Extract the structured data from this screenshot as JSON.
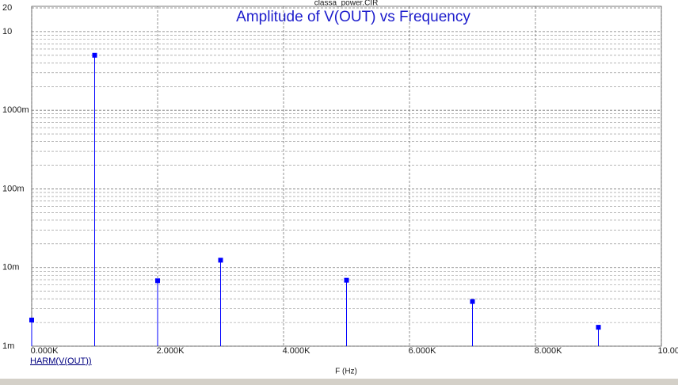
{
  "chart_data": {
    "type": "stem",
    "subtitle": "classa_power.CIR",
    "title": "Amplitude of V(OUT) vs Frequency",
    "x_label": "F (Hz)",
    "log_y": true,
    "grid": true,
    "minor_grid": true,
    "xlim": [
      0,
      10000
    ],
    "xticks": [
      {
        "value": 0,
        "label": "0.000K"
      },
      {
        "value": 2000,
        "label": "2.000K"
      },
      {
        "value": 4000,
        "label": "4.000K"
      },
      {
        "value": 6000,
        "label": "6.000K"
      },
      {
        "value": 8000,
        "label": "8.000K"
      },
      {
        "value": 10000,
        "label": "10.000K"
      }
    ],
    "ylim": [
      0.001,
      20
    ],
    "yticks": [
      20,
      10,
      {
        "value": 1,
        "label": "1000m"
      },
      {
        "value": 0.1,
        "label": "100m"
      },
      {
        "value": 0.01,
        "label": "10m"
      },
      {
        "value": 0.001,
        "label": "1m"
      }
    ],
    "series": [
      {
        "name": "HARM(V(OUT))",
        "color": "#0000ff",
        "x": [
          0,
          1000,
          2000,
          3000,
          5000,
          7000,
          9000
        ],
        "values": [
          0.00215,
          5.0,
          0.0068,
          0.0124,
          0.0069,
          0.0037,
          0.00174
        ]
      }
    ]
  }
}
